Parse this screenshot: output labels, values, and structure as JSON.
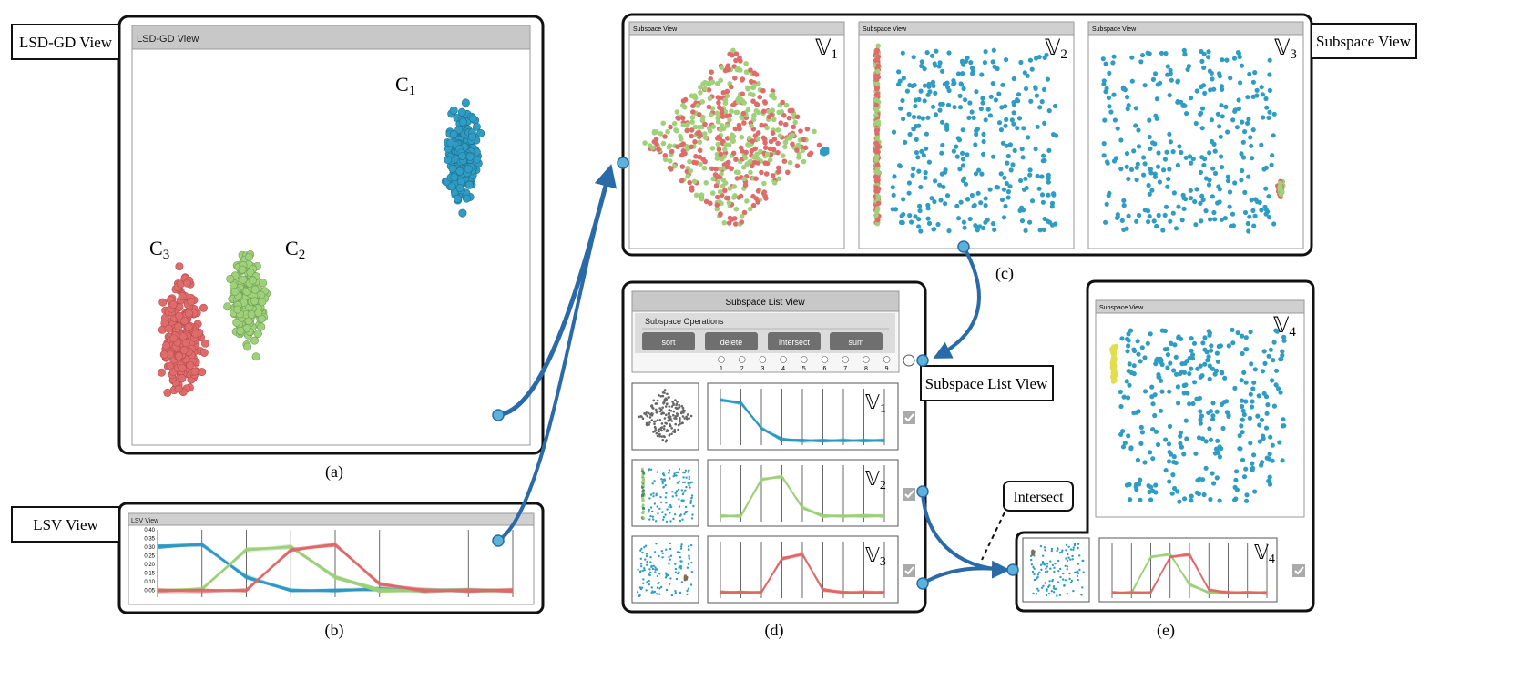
{
  "lsd_panel": {
    "callout": "LSD-GD View",
    "window_title": "LSD-GD View",
    "clusters": [
      {
        "base": "C",
        "sub": "1",
        "color": "#2f9cc4"
      },
      {
        "base": "C",
        "sub": "2",
        "color": "#9fd07a"
      },
      {
        "base": "C",
        "sub": "3",
        "color": "#e06b6b"
      }
    ],
    "caption": "(a)"
  },
  "lsv_panel": {
    "callout": "LSV View",
    "window_title": "LSV View",
    "y_ticks": [
      "0.40",
      "0.35",
      "0.30",
      "0.25",
      "0.20",
      "0.15",
      "0.10",
      "0.05"
    ],
    "caption": "(b)"
  },
  "subspace_panel": {
    "callout": "Subspace View",
    "caption": "(c)",
    "views": [
      {
        "window_title": "Subspace View",
        "label": "1"
      },
      {
        "window_title": "Subspace View",
        "label": "2"
      },
      {
        "window_title": "Subspace View",
        "label": "3"
      }
    ]
  },
  "list_panel": {
    "callout": "Subspace List View",
    "header_title": "Subspace List View",
    "operations_title": "Subspace Operations",
    "buttons": [
      "sort",
      "delete",
      "intersect",
      "sum"
    ],
    "radio_numbers": [
      "1",
      "2",
      "3",
      "4",
      "5",
      "6",
      "7",
      "8",
      "9"
    ],
    "rows": [
      {
        "label": "1"
      },
      {
        "label": "2"
      },
      {
        "label": "3"
      }
    ],
    "caption": "(d)"
  },
  "result_panel": {
    "window_title": "Subspace View",
    "label": "4",
    "row_label": "4",
    "callout": "Intersect",
    "caption": "(e)"
  },
  "colors": {
    "blue": "#2f9cc4",
    "green": "#9fd07a",
    "red": "#e06b6b",
    "arrow": "#2b6aa8",
    "yellow": "#e3dc4e"
  },
  "double_struck_v": "𝕍"
}
